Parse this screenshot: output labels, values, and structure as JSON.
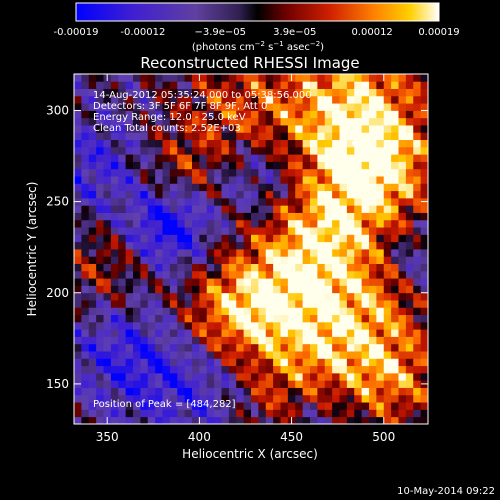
{
  "chart_data": {
    "type": "heatmap",
    "title": "Reconstructed RHESSI Image",
    "xlabel": "Heliocentric X (arcsec)",
    "ylabel": "Heliocentric Y (arcsec)",
    "xlim": [
      332,
      524
    ],
    "ylim": [
      128,
      320
    ],
    "x_ticks": [
      350,
      400,
      450,
      500
    ],
    "y_ticks": [
      150,
      200,
      250,
      300
    ],
    "colorbar": {
      "range": [
        -0.00019,
        0.00019
      ],
      "tick_values": [
        -0.00019,
        -0.00012,
        -3.9e-05,
        3.9e-05,
        0.00012,
        0.00019
      ],
      "tick_labels": [
        "-0.00019",
        "-0.00012",
        "−3.9e−05",
        "3.9e−05",
        "0.00012",
        "0.00019"
      ],
      "unit_label": "(photons cm",
      "unit_exp1": "−2",
      "unit_mid": " s",
      "unit_exp2": "−1",
      "unit_end": " asec",
      "unit_exp3": "−2",
      "unit_close": ")",
      "colors": [
        "#0000ff",
        "#6040c0",
        "#4a2a7a",
        "#000000",
        "#7a0000",
        "#d02000",
        "#ff7a00",
        "#ffd000",
        "#ffffff"
      ]
    },
    "grid": false,
    "map_features": [
      {
        "x": 482,
        "y": 300,
        "v": 1.0,
        "s": 28
      },
      {
        "x": 495,
        "y": 265,
        "v": 0.9,
        "s": 22
      },
      {
        "x": 468,
        "y": 230,
        "v": 0.75,
        "s": 20
      },
      {
        "x": 445,
        "y": 200,
        "v": 0.85,
        "s": 24
      },
      {
        "x": 415,
        "y": 185,
        "v": 0.7,
        "s": 20
      },
      {
        "x": 470,
        "y": 170,
        "v": 0.65,
        "s": 22
      },
      {
        "x": 505,
        "y": 155,
        "v": 0.7,
        "s": 20
      },
      {
        "x": 500,
        "y": 200,
        "v": 0.55,
        "s": 18
      },
      {
        "x": 420,
        "y": 300,
        "v": 0.5,
        "s": 22
      },
      {
        "x": 390,
        "y": 265,
        "v": 0.45,
        "s": 18
      },
      {
        "x": 350,
        "y": 215,
        "v": 0.4,
        "s": 18
      },
      {
        "x": 440,
        "y": 140,
        "v": 0.45,
        "s": 16
      },
      {
        "x": 384,
        "y": 237,
        "v": -0.95,
        "s": 16
      },
      {
        "x": 360,
        "y": 165,
        "v": -0.55,
        "s": 22
      },
      {
        "x": 345,
        "y": 270,
        "v": -0.5,
        "s": 20
      },
      {
        "x": 400,
        "y": 150,
        "v": -0.5,
        "s": 22
      },
      {
        "x": 430,
        "y": 265,
        "v": -0.45,
        "s": 16
      },
      {
        "x": 515,
        "y": 215,
        "v": -0.45,
        "s": 14
      },
      {
        "x": 460,
        "y": 130,
        "v": -0.3,
        "s": 16
      }
    ],
    "annotations": [
      "14-Aug-2012 05:35:24.000 to 05:38:56.000",
      "Detectors: 3F 5F 6F 7F 8F 9F, Att 0",
      "Energy Range: 12.0 - 25.0 keV",
      "Clean      Total counts: 2.52E+03"
    ],
    "peak_label": "Position of Peak = [484,282]",
    "peak": {
      "x": 484,
      "y": 282
    }
  },
  "footer": {
    "timestamp": "10-May-2014 09:22"
  },
  "colors": {
    "background": "#000000",
    "text": "#ffffff"
  }
}
